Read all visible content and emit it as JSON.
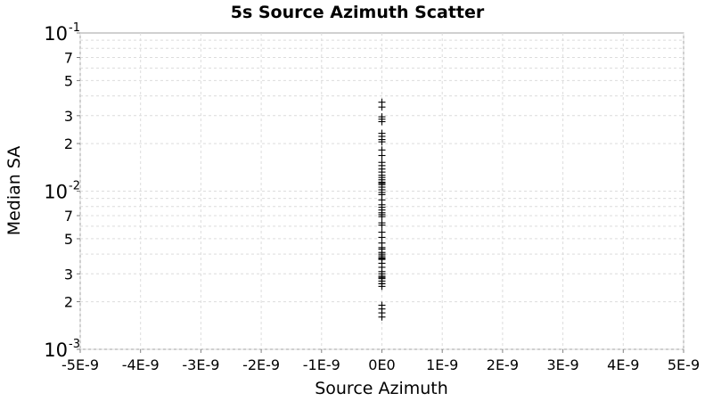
{
  "chart_data": {
    "type": "scatter",
    "title": "5s Source Azimuth Scatter",
    "xlabel": "Source Azimuth",
    "ylabel": "Median SA",
    "xlim": [
      -5e-09,
      5e-09
    ],
    "ylim": [
      0.001,
      0.1
    ],
    "y_scale": "log",
    "grid": true,
    "marker": "plus",
    "x_ticks": [
      {
        "value": -5e-09,
        "label": "-5E-9"
      },
      {
        "value": -4e-09,
        "label": "-4E-9"
      },
      {
        "value": -3e-09,
        "label": "-3E-9"
      },
      {
        "value": -2e-09,
        "label": "-2E-9"
      },
      {
        "value": -1e-09,
        "label": "-1E-9"
      },
      {
        "value": 0,
        "label": "0E0"
      },
      {
        "value": 1e-09,
        "label": "1E-9"
      },
      {
        "value": 2e-09,
        "label": "2E-9"
      },
      {
        "value": 3e-09,
        "label": "3E-9"
      },
      {
        "value": 4e-09,
        "label": "4E-9"
      },
      {
        "value": 5e-09,
        "label": "5E-9"
      }
    ],
    "y_major_ticks": [
      {
        "value": 0.1,
        "base": "10",
        "exp": "-1"
      },
      {
        "value": 0.01,
        "base": "10",
        "exp": "-2"
      },
      {
        "value": 0.001,
        "base": "10",
        "exp": "-3"
      }
    ],
    "y_minor_ticks": [
      {
        "value": 0.07,
        "label": "7"
      },
      {
        "value": 0.05,
        "label": "5"
      },
      {
        "value": 0.03,
        "label": "3"
      },
      {
        "value": 0.02,
        "label": "2"
      },
      {
        "value": 0.007,
        "label": "7"
      },
      {
        "value": 0.005,
        "label": "5"
      },
      {
        "value": 0.003,
        "label": "3"
      },
      {
        "value": 0.002,
        "label": "2"
      }
    ],
    "series": [
      {
        "x": [
          0,
          0,
          0,
          0,
          0,
          0,
          0,
          0,
          0,
          0,
          0,
          0,
          0,
          0,
          0,
          0,
          0,
          0,
          0,
          0,
          0,
          0,
          0,
          0,
          0,
          0,
          0,
          0,
          0,
          0,
          0,
          0,
          0,
          0,
          0,
          0,
          0,
          0,
          0,
          0,
          0,
          0,
          0,
          0,
          0,
          0,
          0,
          0,
          0,
          0,
          0,
          0,
          0,
          0,
          0,
          0,
          0,
          0,
          0,
          0
        ],
        "y": [
          0.0365,
          0.034,
          0.0295,
          0.0285,
          0.0275,
          0.0232,
          0.0222,
          0.0212,
          0.0205,
          0.0182,
          0.0168,
          0.0152,
          0.0145,
          0.0138,
          0.0132,
          0.0126,
          0.0122,
          0.0118,
          0.0114,
          0.011,
          0.0106,
          0.0102,
          0.0095,
          0.0088,
          0.0082,
          0.0076,
          0.0073,
          0.0071,
          0.0069,
          0.0063,
          0.0055,
          0.0051,
          0.0047,
          0.0044,
          0.0043,
          0.0041,
          0.004,
          0.0039,
          0.0038,
          0.00375,
          0.0037,
          0.0035,
          0.0033,
          0.0031,
          0.003,
          0.0029,
          0.00285,
          0.0028,
          0.0027,
          0.0026,
          0.0025,
          0.0019,
          0.0018,
          0.0017,
          0.0016,
          0.0112,
          0.0098,
          0.0079,
          0.0061,
          0.0026
        ]
      }
    ]
  }
}
